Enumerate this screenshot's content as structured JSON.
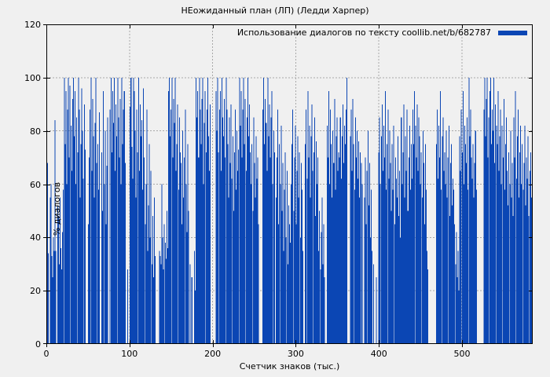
{
  "title": "НЕожиданный план (ЛП) (Ледди Харпер)",
  "legend": {
    "label": "Использование диалогов по тексту coollib.net/b/682787"
  },
  "colors": {
    "background": "#f0f0f0",
    "bar": "#0b46b4",
    "grid": "#a8a8a8",
    "border": "#000000",
    "text": "#000000"
  },
  "chart_data": {
    "type": "bar",
    "title": "НЕожиданный план (ЛП) (Ледди Харпер)",
    "legend_label": "Использование диалогов по тексту coollib.net/b/682787",
    "xlabel": "Счетчик знаков (тыс.)",
    "ylabel": "% диалогов",
    "xlim": [
      0,
      585
    ],
    "ylim": [
      0,
      120
    ],
    "x_ticks": [
      0,
      100,
      200,
      300,
      400,
      500
    ],
    "y_ticks": [
      0,
      20,
      40,
      60,
      80,
      100,
      120
    ],
    "grid": true,
    "legend_position": "top-right-inside",
    "bar_color": "#0b46b4",
    "x_step": 1,
    "values": [
      47,
      68,
      34,
      0,
      55,
      60,
      33,
      25,
      40,
      35,
      84,
      35,
      0,
      52,
      48,
      30,
      55,
      36,
      28,
      42,
      58,
      100,
      75,
      95,
      60,
      88,
      100,
      70,
      97,
      82,
      65,
      92,
      100,
      78,
      95,
      60,
      85,
      72,
      100,
      88,
      55,
      75,
      96,
      80,
      62,
      90,
      73,
      0,
      0,
      0,
      45,
      70,
      88,
      100,
      65,
      92,
      78,
      55,
      83,
      100,
      68,
      75,
      58,
      87,
      0,
      0,
      72,
      50,
      95,
      60,
      80,
      45,
      67,
      85,
      0,
      0,
      88,
      100,
      72,
      95,
      83,
      100,
      65,
      90,
      78,
      100,
      85,
      70,
      92,
      60,
      100,
      75,
      88,
      95,
      68,
      0,
      0,
      28,
      0,
      0,
      89,
      100,
      74,
      62,
      100,
      95,
      80,
      55,
      88,
      72,
      100,
      65,
      90,
      78,
      84,
      58,
      96,
      70,
      45,
      60,
      88,
      35,
      52,
      75,
      40,
      65,
      30,
      48,
      25,
      55,
      33,
      0,
      0,
      0,
      0,
      35,
      33,
      30,
      60,
      40,
      28,
      45,
      38,
      32,
      50,
      36,
      95,
      100,
      78,
      88,
      100,
      70,
      92,
      83,
      100,
      65,
      75,
      90,
      58,
      85,
      72,
      68,
      45,
      80,
      55,
      70,
      88,
      60,
      42,
      75,
      50,
      0,
      30,
      0,
      25,
      0,
      0,
      35,
      20,
      100,
      85,
      95,
      70,
      100,
      88,
      75,
      92,
      100,
      60,
      83,
      95,
      72,
      88,
      100,
      78,
      65,
      90,
      0,
      0,
      0,
      0,
      0,
      0,
      95,
      80,
      100,
      72,
      88,
      95,
      65,
      100,
      85,
      78,
      92,
      70,
      100,
      88,
      75,
      55,
      85,
      68,
      90,
      62,
      78,
      50,
      72,
      88,
      58,
      80,
      65,
      73,
      100,
      82,
      95,
      70,
      88,
      100,
      75,
      92,
      65,
      85,
      100,
      78,
      90,
      72,
      60,
      75,
      50,
      85,
      68,
      55,
      78,
      62,
      70,
      45,
      0,
      0,
      0,
      0,
      88,
      100,
      75,
      92,
      83,
      65,
      100,
      78,
      90,
      70,
      85,
      95,
      60,
      80,
      72,
      0,
      55,
      70,
      88,
      45,
      75,
      60,
      82,
      50,
      68,
      35,
      58,
      72,
      40,
      65,
      30,
      52,
      45,
      38,
      60,
      75,
      88,
      50,
      70,
      82,
      45,
      65,
      78,
      55,
      72,
      40,
      68,
      58,
      35,
      0,
      0,
      75,
      88,
      62,
      95,
      70,
      82,
      55,
      78,
      90,
      65,
      72,
      85,
      48,
      76,
      60,
      70,
      35,
      50,
      28,
      42,
      55,
      30,
      45,
      25,
      0,
      0,
      82,
      70,
      95,
      60,
      88,
      75,
      55,
      80,
      68,
      92,
      58,
      78,
      85,
      65,
      72,
      70,
      85,
      62,
      78,
      90,
      68,
      82,
      75,
      88,
      100,
      0,
      0,
      0,
      78,
      88,
      65,
      92,
      75,
      58,
      85,
      70,
      80,
      62,
      76,
      55,
      72,
      68,
      60,
      0,
      0,
      55,
      70,
      45,
      65,
      80,
      52,
      68,
      40,
      58,
      35,
      0,
      30,
      0,
      0,
      25,
      0,
      0,
      72,
      85,
      60,
      78,
      90,
      65,
      82,
      70,
      95,
      58,
      75,
      88,
      62,
      80,
      68,
      50,
      75,
      58,
      82,
      45,
      70,
      62,
      55,
      78,
      48,
      65,
      40,
      85,
      60,
      72,
      90,
      55,
      78,
      65,
      88,
      50,
      70,
      82,
      58,
      75,
      62,
      88,
      75,
      95,
      82,
      70,
      90,
      65,
      85,
      78,
      60,
      72,
      55,
      80,
      68,
      45,
      75,
      58,
      35,
      28,
      0,
      0,
      0,
      0,
      0,
      0,
      0,
      0,
      0,
      75,
      88,
      62,
      82,
      70,
      95,
      58,
      78,
      85,
      65,
      72,
      60,
      80,
      55,
      70,
      82,
      48,
      68,
      75,
      52,
      62,
      58,
      45,
      30,
      42,
      25,
      35,
      20,
      78,
      65,
      88,
      72,
      95,
      60,
      82,
      75,
      68,
      85,
      58,
      100,
      78,
      88,
      70,
      62,
      75,
      55,
      68,
      80,
      58,
      0,
      0,
      0,
      0,
      0,
      0,
      0,
      0,
      88,
      100,
      78,
      92,
      100,
      70,
      85,
      95,
      100,
      75,
      88,
      80,
      100,
      68,
      90,
      82,
      75,
      95,
      65,
      78,
      88,
      60,
      82,
      70,
      92,
      58,
      75,
      85,
      65,
      52,
      72,
      60,
      80,
      55,
      68,
      48,
      85,
      70,
      95,
      62,
      78,
      88,
      55,
      72,
      82,
      60,
      75,
      58,
      68,
      82,
      52,
      70,
      62,
      78,
      48,
      65,
      72,
      55,
      60
    ]
  }
}
